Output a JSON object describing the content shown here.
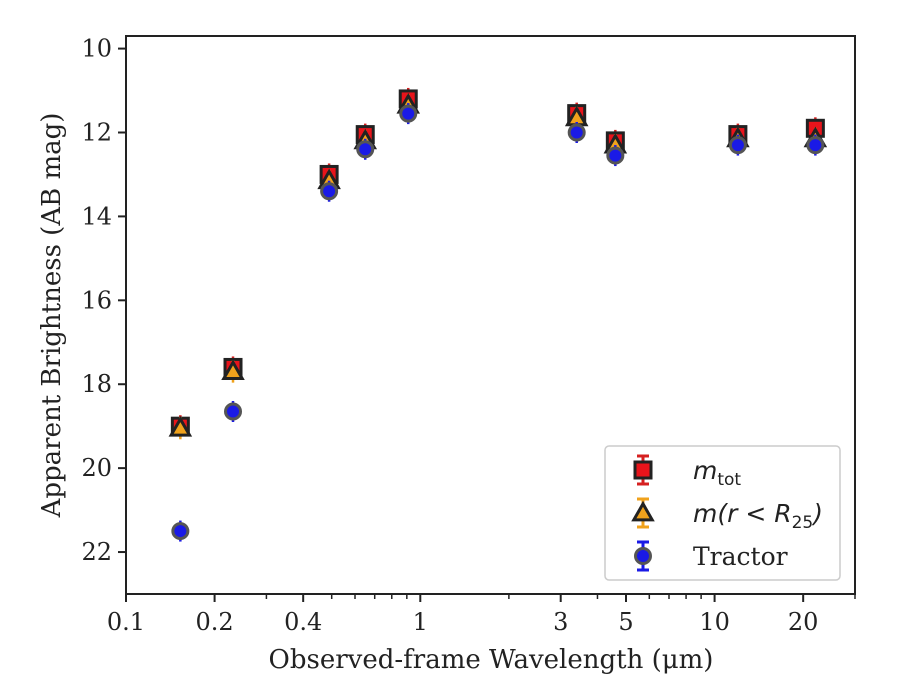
{
  "chart_data": {
    "type": "scatter",
    "title": "",
    "xlabel": "Observed-frame Wavelength (μm)",
    "ylabel": "Apparent Brightness (AB mag)",
    "xscale": "log",
    "xlim": [
      0.1,
      30
    ],
    "ylim": [
      23,
      9.7
    ],
    "y_inverted": true,
    "grid": false,
    "legend_position": "lower-right",
    "xticks": [
      {
        "value": 0.1,
        "label": "0.1"
      },
      {
        "value": 0.2,
        "label": "0.2"
      },
      {
        "value": 0.4,
        "label": "0.4"
      },
      {
        "value": 1,
        "label": "1"
      },
      {
        "value": 3,
        "label": "3"
      },
      {
        "value": 5,
        "label": "5"
      },
      {
        "value": 10,
        "label": "10"
      },
      {
        "value": 20,
        "label": "20"
      }
    ],
    "yticks": [
      {
        "value": 10,
        "label": "10"
      },
      {
        "value": 12,
        "label": "12"
      },
      {
        "value": 14,
        "label": "14"
      },
      {
        "value": 16,
        "label": "16"
      },
      {
        "value": 18,
        "label": "18"
      },
      {
        "value": 20,
        "label": "20"
      },
      {
        "value": 22,
        "label": "22"
      }
    ],
    "series": [
      {
        "legend_main": "m",
        "legend_sub": "tot",
        "legend_suffix": "",
        "marker": "square",
        "color": "#e8141b",
        "error_color": "#d62020",
        "points": [
          {
            "x": 0.153,
            "y": 19.0
          },
          {
            "x": 0.231,
            "y": 17.6
          },
          {
            "x": 0.49,
            "y": 13.0
          },
          {
            "x": 0.65,
            "y": 12.05
          },
          {
            "x": 0.91,
            "y": 11.2
          },
          {
            "x": 3.4,
            "y": 11.55
          },
          {
            "x": 4.6,
            "y": 12.2
          },
          {
            "x": 12.0,
            "y": 12.05
          },
          {
            "x": 22.0,
            "y": 11.9
          }
        ]
      },
      {
        "legend_main": "m(r < R",
        "legend_sub": "25",
        "legend_suffix": ")",
        "marker": "triangle",
        "color": "#f0a21c",
        "error_color": "#f0a21c",
        "points": [
          {
            "x": 0.153,
            "y": 19.05
          },
          {
            "x": 0.231,
            "y": 17.7
          },
          {
            "x": 0.49,
            "y": 13.15
          },
          {
            "x": 0.65,
            "y": 12.2
          },
          {
            "x": 0.91,
            "y": 11.35
          },
          {
            "x": 3.4,
            "y": 11.65
          },
          {
            "x": 4.6,
            "y": 12.3
          },
          {
            "x": 12.0,
            "y": 12.15
          },
          {
            "x": 22.0,
            "y": 12.15
          }
        ]
      },
      {
        "legend_main": "Tractor",
        "legend_sub": "",
        "legend_suffix": "",
        "marker": "circle",
        "color": "#1a1ae6",
        "error_color": "#1a1ae6",
        "points": [
          {
            "x": 0.153,
            "y": 21.5
          },
          {
            "x": 0.231,
            "y": 18.65
          },
          {
            "x": 0.49,
            "y": 13.4
          },
          {
            "x": 0.65,
            "y": 12.4
          },
          {
            "x": 0.91,
            "y": 11.55
          },
          {
            "x": 3.4,
            "y": 12.0
          },
          {
            "x": 4.6,
            "y": 12.55
          },
          {
            "x": 12.0,
            "y": 12.3
          },
          {
            "x": 22.0,
            "y": 12.3
          }
        ]
      }
    ]
  }
}
